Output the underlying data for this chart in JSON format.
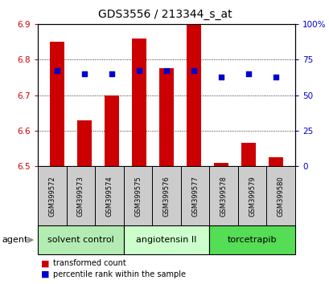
{
  "title": "GDS3556 / 213344_s_at",
  "samples": [
    "GSM399572",
    "GSM399573",
    "GSM399574",
    "GSM399575",
    "GSM399576",
    "GSM399577",
    "GSM399578",
    "GSM399579",
    "GSM399580"
  ],
  "transformed_count": [
    6.85,
    6.63,
    6.7,
    6.86,
    6.775,
    6.9,
    6.51,
    6.565,
    6.525
  ],
  "percentile_rank": [
    67,
    65,
    65,
    67,
    67,
    67,
    63,
    65,
    63
  ],
  "ylim_left": [
    6.5,
    6.9
  ],
  "ylim_right": [
    0,
    100
  ],
  "yticks_left": [
    6.5,
    6.6,
    6.7,
    6.8,
    6.9
  ],
  "yticks_right": [
    0,
    25,
    50,
    75,
    100
  ],
  "ytick_labels_right": [
    "0",
    "25",
    "50",
    "75",
    "100%"
  ],
  "groups": [
    {
      "label": "solvent control",
      "start": 0,
      "end": 3,
      "color": "#b3ecb3"
    },
    {
      "label": "angiotensin II",
      "start": 3,
      "end": 6,
      "color": "#ccffcc"
    },
    {
      "label": "torcetrapib",
      "start": 6,
      "end": 9,
      "color": "#55dd55"
    }
  ],
  "bar_color": "#cc0000",
  "dot_color": "#0000cc",
  "bar_width": 0.55,
  "baseline": 6.5,
  "agent_label": "agent",
  "legend_red_label": "transformed count",
  "legend_blue_label": "percentile rank within the sample",
  "left_tick_color": "#cc0000",
  "right_tick_color": "#0000cc",
  "title_fontsize": 10,
  "tick_fontsize": 7.5,
  "sample_fontsize": 6,
  "group_fontsize": 8,
  "legend_fontsize": 7
}
